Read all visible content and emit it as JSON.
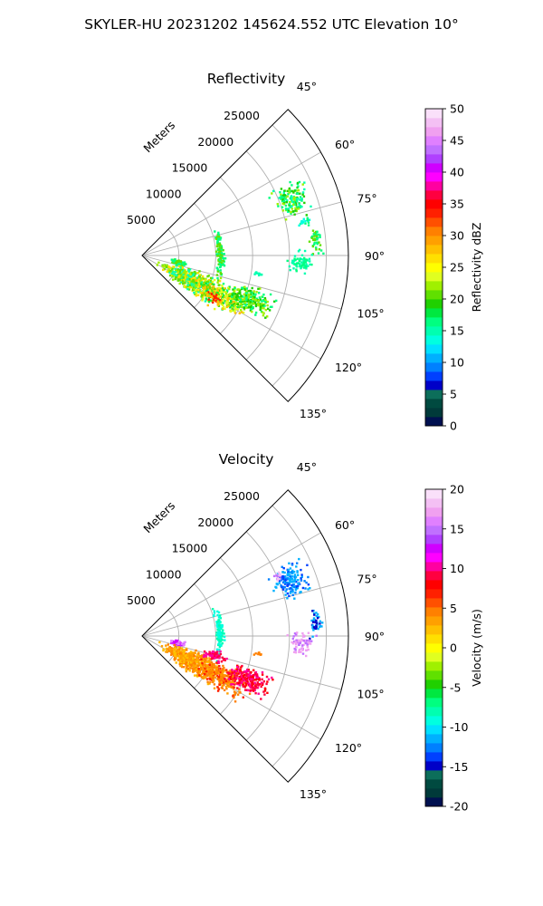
{
  "figure": {
    "title": "SKYLER-HU  20231202  145624.552 UTC Elevation 10°"
  },
  "chart_data": [
    {
      "type": "polar-ppi",
      "title": "Reflectivity",
      "radial_label": "Meters",
      "radial_ticks": [
        5000,
        10000,
        15000,
        20000,
        25000
      ],
      "angle_ticks": [
        45,
        60,
        75,
        90,
        105,
        120,
        135
      ],
      "angle_tick_labels": [
        "45°",
        "60°",
        "75°",
        "90°",
        "105°",
        "120°",
        "135°"
      ],
      "theta_range": [
        45,
        135
      ],
      "r_max": 28000,
      "grid": true,
      "colorbar": {
        "label": "Reflectivity dBZ",
        "vmin": 0,
        "vmax": 50,
        "ticks": [
          0,
          5,
          10,
          15,
          20,
          25,
          30,
          35,
          40,
          45,
          50
        ],
        "colors": [
          "#001050",
          "#003a3a",
          "#004a40",
          "#0c6e5a",
          "#0000c8",
          "#0040ff",
          "#0080ff",
          "#00b0ff",
          "#00e0ff",
          "#00ffe0",
          "#00ffb0",
          "#00ff80",
          "#00e840",
          "#20d000",
          "#60e000",
          "#a0f000",
          "#e0ff20",
          "#ffff00",
          "#ffe000",
          "#ffc000",
          "#ffa000",
          "#ff8000",
          "#ff5000",
          "#ff2000",
          "#ff0000",
          "#ff0040",
          "#ff00a0",
          "#ff00ff",
          "#d000ff",
          "#b040ff",
          "#c070ff",
          "#e080ff",
          "#f0a0f0",
          "#f4c0f4",
          "#fae0fa"
        ]
      },
      "echoes": [
        {
          "name": "far-echo-70deg",
          "az": 69,
          "r": 21500,
          "da": 4.5,
          "dr": 1800,
          "values": [
            17,
            22,
            19,
            15
          ]
        },
        {
          "name": "sparse-echo-77deg",
          "az": 78,
          "r": 22500,
          "da": 1.0,
          "dr": 800,
          "values": [
            17,
            14
          ]
        },
        {
          "name": "sparse-echo-85deg",
          "az": 85,
          "r": 23500,
          "da": 3.5,
          "dr": 600,
          "values": [
            16,
            20
          ]
        },
        {
          "name": "sparse-echo-92deg",
          "az": 92,
          "r": 21500,
          "da": 3.0,
          "dr": 1200,
          "values": [
            17,
            15
          ]
        },
        {
          "name": "near-line-echo",
          "az": 87,
          "r": 10500,
          "da": 14,
          "dr": 400,
          "values": [
            17,
            20
          ]
        },
        {
          "name": "near-echo-100deg",
          "az": 100,
          "r": 4800,
          "da": 3.5,
          "dr": 900,
          "values": [
            20,
            17
          ]
        },
        {
          "name": "main-echo-west",
          "az": 116,
          "r": 7200,
          "da": 8,
          "dr": 3000,
          "values": [
            15,
            22,
            26,
            20
          ]
        },
        {
          "name": "main-echo-center",
          "az": 117,
          "r": 12000,
          "da": 6,
          "dr": 2800,
          "values": [
            18,
            24,
            28,
            21
          ]
        },
        {
          "name": "main-echo-east",
          "az": 112,
          "r": 15500,
          "da": 4.5,
          "dr": 2500,
          "values": [
            17,
            22,
            19
          ]
        },
        {
          "name": "main-echo-core",
          "az": 120,
          "r": 11000,
          "da": 2.0,
          "dr": 900,
          "values": [
            33,
            28
          ]
        },
        {
          "name": "isolated-echo-99deg",
          "az": 98.5,
          "r": 15800,
          "da": 0.6,
          "dr": 400,
          "values": [
            15
          ]
        }
      ]
    },
    {
      "type": "polar-ppi",
      "title": "Velocity",
      "radial_label": "Meters",
      "radial_ticks": [
        5000,
        10000,
        15000,
        20000,
        25000
      ],
      "angle_ticks": [
        45,
        60,
        75,
        90,
        105,
        120,
        135
      ],
      "angle_tick_labels": [
        "45°",
        "60°",
        "75°",
        "90°",
        "105°",
        "120°",
        "135°"
      ],
      "theta_range": [
        45,
        135
      ],
      "r_max": 28000,
      "grid": true,
      "colorbar": {
        "label": "Velocity (m/s)",
        "vmin": -20,
        "vmax": 20,
        "ticks": [
          -20,
          -15,
          -10,
          -5,
          0,
          5,
          10,
          15,
          20
        ],
        "colors": [
          "#001050",
          "#003a3a",
          "#004a40",
          "#0c6e5a",
          "#0000c8",
          "#0040ff",
          "#0080ff",
          "#00b0ff",
          "#00e0ff",
          "#00ffe0",
          "#00ffb0",
          "#00ff80",
          "#00e840",
          "#20d000",
          "#60e000",
          "#a0f000",
          "#e0ff20",
          "#ffff00",
          "#ffe000",
          "#ffc000",
          "#ffa000",
          "#ff8000",
          "#ff5000",
          "#ff2000",
          "#ff0000",
          "#ff0040",
          "#ff00a0",
          "#ff00ff",
          "#d000ff",
          "#b040ff",
          "#c070ff",
          "#e080ff",
          "#f0a0f0",
          "#f4c0f4",
          "#fae0fa"
        ]
      },
      "echoes": [
        {
          "name": "far-echo-70deg",
          "az": 69,
          "r": 21500,
          "da": 4.5,
          "dr": 1800,
          "values": [
            -12,
            -13,
            -11,
            -14
          ]
        },
        {
          "name": "far-echo-edge",
          "az": 66,
          "r": 20000,
          "da": 1.2,
          "dr": 600,
          "values": [
            15,
            18
          ]
        },
        {
          "name": "sparse-echo-85deg",
          "az": 85,
          "r": 23500,
          "da": 3.5,
          "dr": 600,
          "values": [
            -12,
            -15
          ]
        },
        {
          "name": "sparse-echo-92deg",
          "az": 92,
          "r": 21500,
          "da": 3.0,
          "dr": 1200,
          "values": [
            15,
            17
          ]
        },
        {
          "name": "near-line-echo",
          "az": 87,
          "r": 10500,
          "da": 14,
          "dr": 400,
          "values": [
            -8,
            -9
          ]
        },
        {
          "name": "near-echo-100deg",
          "az": 100,
          "r": 4800,
          "da": 3.5,
          "dr": 900,
          "values": [
            12,
            16
          ]
        },
        {
          "name": "main-echo-west",
          "az": 116,
          "r": 7200,
          "da": 8,
          "dr": 3000,
          "values": [
            3,
            4,
            2
          ]
        },
        {
          "name": "main-echo-center",
          "az": 117,
          "r": 12000,
          "da": 6,
          "dr": 2800,
          "values": [
            3,
            5,
            7,
            4
          ]
        },
        {
          "name": "main-echo-east",
          "az": 112,
          "r": 15500,
          "da": 4.5,
          "dr": 2500,
          "values": [
            8,
            10,
            9
          ]
        },
        {
          "name": "main-echo-north-edge",
          "az": 105,
          "r": 10000,
          "da": 3,
          "dr": 1200,
          "values": [
            9,
            10
          ]
        },
        {
          "name": "isolated-echo-99deg",
          "az": 98.5,
          "r": 15800,
          "da": 0.6,
          "dr": 400,
          "values": [
            4
          ]
        }
      ]
    }
  ]
}
